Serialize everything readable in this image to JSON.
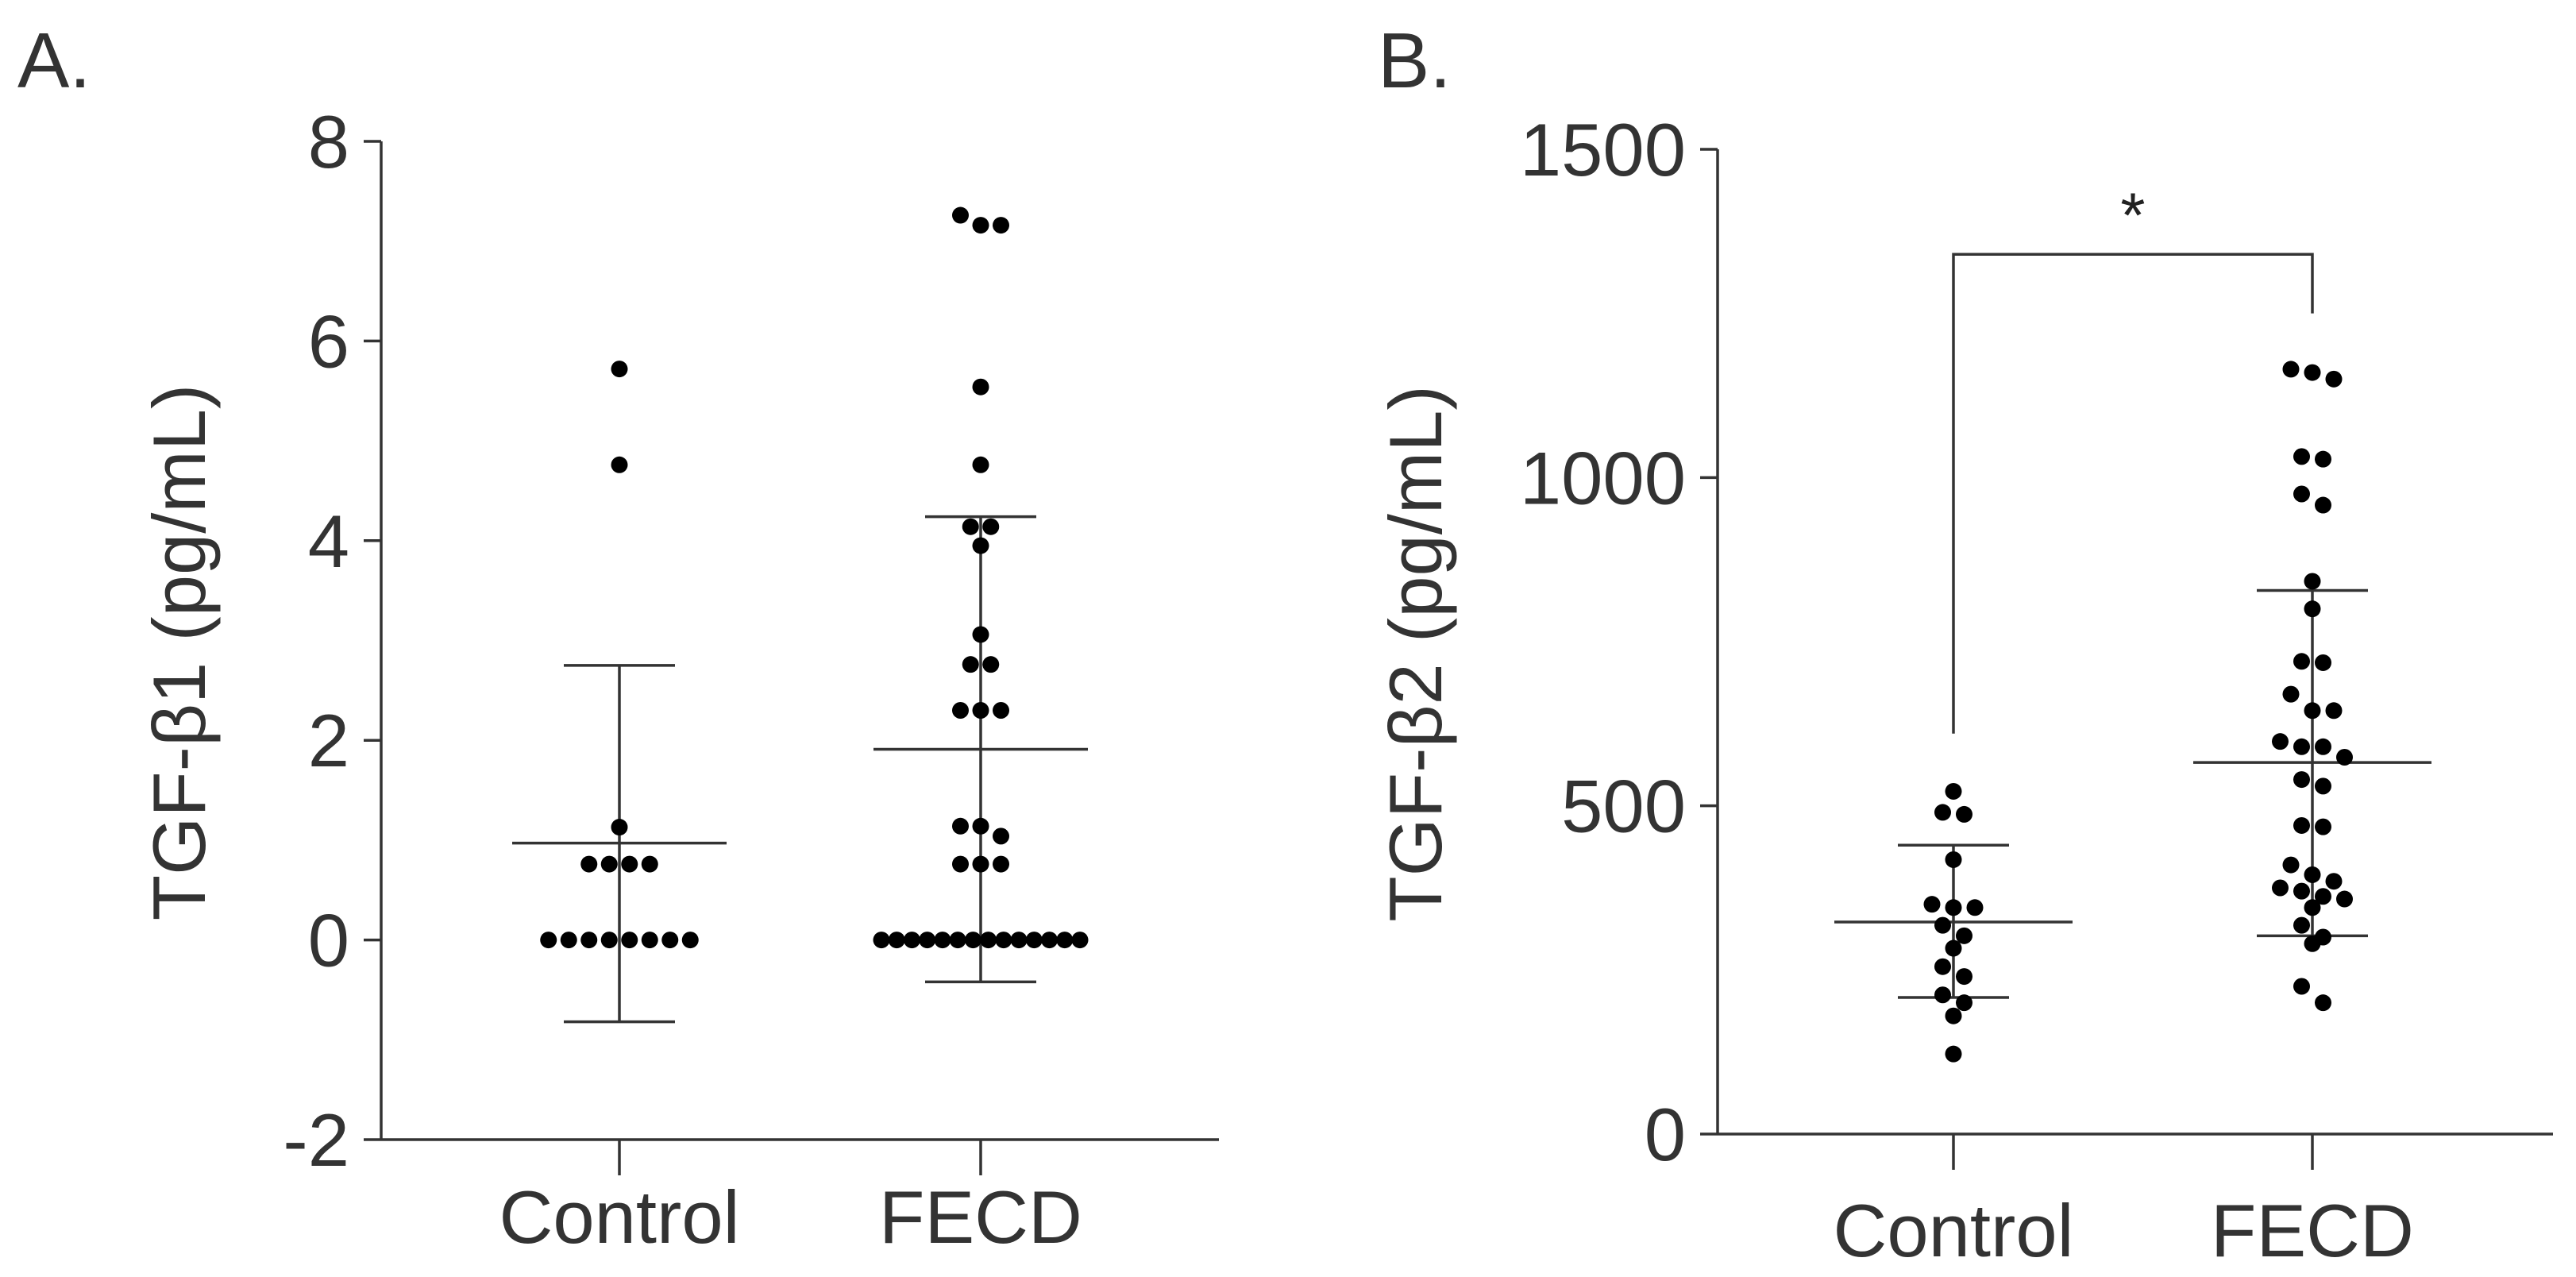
{
  "chart_data": [
    {
      "type": "scatter",
      "panel_label": "A.",
      "ylabel": "TGF-β1 (pg/mL)",
      "xlabel": "",
      "ylim": [
        -2,
        8
      ],
      "yticks": [
        -2,
        0,
        2,
        4,
        6,
        8
      ],
      "ytick_labels": [
        "-2",
        "0",
        "2",
        "4",
        "6",
        "8"
      ],
      "categories": [
        "Control",
        "FECD"
      ],
      "groups": [
        {
          "name": "Control",
          "mean": 0.97,
          "sd_upper": 2.75,
          "sd_lower": -0.82,
          "points": [
            5.72,
            4.76,
            1.13,
            0.76,
            0.76,
            0.76,
            0.76,
            0,
            0,
            0,
            0,
            0,
            0,
            0,
            0
          ]
        },
        {
          "name": "FECD",
          "mean": 1.91,
          "sd_upper": 4.24,
          "sd_lower": -0.42,
          "points": [
            7.26,
            7.16,
            7.16,
            5.54,
            4.76,
            4.14,
            4.14,
            3.95,
            3.06,
            2.76,
            2.76,
            2.3,
            2.3,
            2.3,
            1.14,
            1.14,
            1.04,
            0.76,
            0.76,
            0.76,
            0,
            0,
            0,
            0,
            0,
            0,
            0,
            0,
            0,
            0,
            0,
            0,
            0,
            0
          ]
        }
      ],
      "significance": null
    },
    {
      "type": "scatter",
      "panel_label": "B.",
      "ylabel": "TGF-β2 (pg/mL)",
      "xlabel": "",
      "ylim": [
        0,
        1500
      ],
      "yticks": [
        0,
        500,
        1000,
        1500
      ],
      "ytick_labels": [
        "0",
        "500",
        "1000",
        "1500"
      ],
      "categories": [
        "Control",
        "FECD"
      ],
      "groups": [
        {
          "name": "Control",
          "mean": 323,
          "sd_upper": 440,
          "sd_lower": 208,
          "points": [
            522,
            490,
            487,
            418,
            350,
            345,
            345,
            318,
            302,
            283,
            255,
            240,
            212,
            200,
            180,
            122
          ]
        },
        {
          "name": "FECD",
          "mean": 566,
          "sd_upper": 828,
          "sd_lower": 302,
          "points": [
            1165,
            1160,
            1150,
            1032,
            1028,
            975,
            958,
            842,
            800,
            720,
            718,
            670,
            645,
            645,
            598,
            590,
            590,
            574,
            540,
            530,
            470,
            468,
            410,
            395,
            385,
            375,
            370,
            362,
            358,
            345,
            318,
            300,
            290,
            225,
            200
          ]
        }
      ],
      "significance": {
        "from": "Control",
        "to": "FECD",
        "label": "*"
      }
    }
  ]
}
